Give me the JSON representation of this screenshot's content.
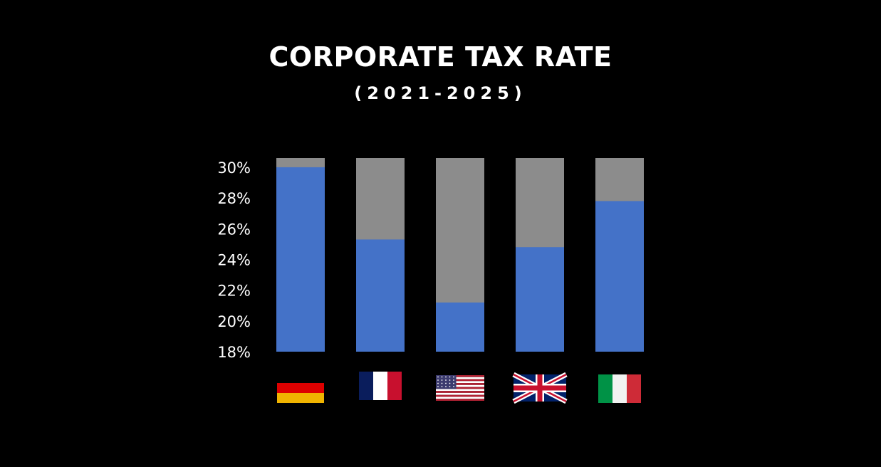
{
  "chart_data": {
    "type": "bar",
    "title": "CORPORATE TAX RATE",
    "subtitle": "(2021-2025)",
    "categories": [
      "Germany",
      "France",
      "United States",
      "United Kingdom",
      "Italy"
    ],
    "category_icons": [
      "germany-flag-icon",
      "france-flag-icon",
      "usa-flag-icon",
      "uk-flag-icon",
      "italy-flag-icon"
    ],
    "values": [
      30.0,
      25.3,
      21.2,
      24.8,
      27.8
    ],
    "ylim": [
      18,
      30.6
    ],
    "yticks": [
      18,
      20,
      22,
      24,
      26,
      28,
      30
    ],
    "ytick_labels": [
      "18%",
      "20%",
      "22%",
      "24%",
      "26%",
      "28%",
      "30%"
    ],
    "xlabel": "",
    "ylabel": "",
    "grid": false,
    "colors": {
      "value_bar": "#4472C8",
      "background_bar": "#8C8C8C",
      "background": "#000000",
      "text": "#FFFFFF"
    }
  }
}
